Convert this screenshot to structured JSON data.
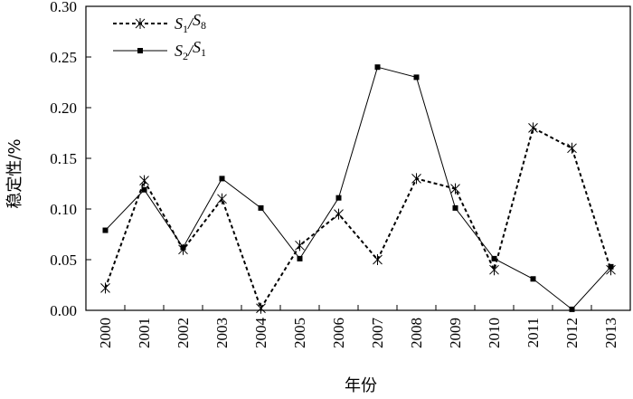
{
  "chart_data": {
    "type": "line",
    "title": "",
    "xlabel": "年份",
    "ylabel": "稳定性/%",
    "categories": [
      "2000",
      "2001",
      "2002",
      "2003",
      "2004",
      "2005",
      "2006",
      "2007",
      "2008",
      "2009",
      "2010",
      "2011",
      "2012",
      "2013"
    ],
    "ylim": [
      0,
      0.3
    ],
    "yticks": [
      "0.00",
      "0.05",
      "0.10",
      "0.15",
      "0.20",
      "0.25",
      "0.30"
    ],
    "grid": false,
    "legend_position": "top-left",
    "series": [
      {
        "name": "S1/S8",
        "legend_main_1": "S",
        "legend_sub_1": "1",
        "legend_slash": "/",
        "legend_main_2": "S",
        "legend_sub_2": "8",
        "style": "dotted",
        "marker": "asterisk",
        "values": [
          0.022,
          0.128,
          0.06,
          0.11,
          0.002,
          0.064,
          0.095,
          0.05,
          0.13,
          0.12,
          0.04,
          0.18,
          0.16,
          0.04
        ]
      },
      {
        "name": "S2/S1",
        "legend_main_1": "S",
        "legend_sub_1": "2",
        "legend_slash": "/",
        "legend_main_2": "S",
        "legend_sub_2": "1",
        "style": "solid",
        "marker": "square",
        "values": [
          0.079,
          0.119,
          0.062,
          0.13,
          0.101,
          0.051,
          0.111,
          0.24,
          0.23,
          0.101,
          0.051,
          0.031,
          0.001,
          0.043
        ]
      }
    ]
  }
}
